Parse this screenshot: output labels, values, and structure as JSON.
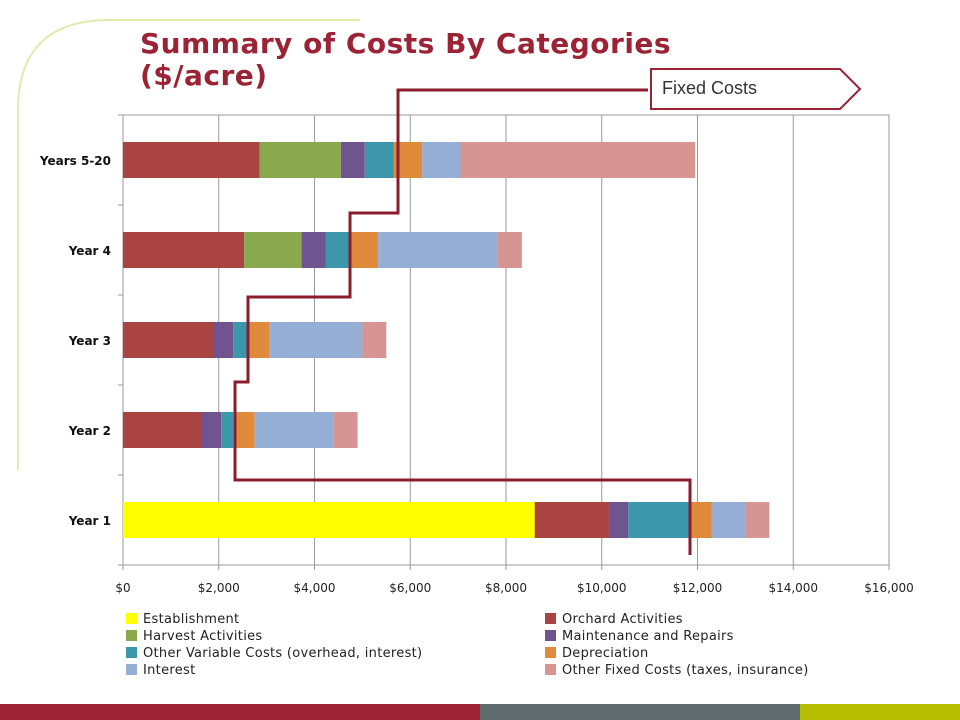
{
  "slide": {
    "title": "Summary of Costs By Categories ($/acre)",
    "callout_label": "Fixed Costs",
    "accent_color": "#9b2335",
    "decor_line_color": "#e3eab0",
    "footer_colors": [
      "#9b2335",
      "#5f6b6d",
      "#b5bd00"
    ]
  },
  "chart_data": {
    "type": "bar",
    "orientation": "horizontal",
    "stacked": true,
    "categories": [
      "Years 5-20",
      "Year 4",
      "Year 3",
      "Year 2",
      "Year 1"
    ],
    "x_ticks": [
      "$0",
      "$2,000",
      "$4,000",
      "$6,000",
      "$8,000",
      "$10,000",
      "$12,000",
      "$14,000",
      "$16,000"
    ],
    "xlim": [
      0,
      16000
    ],
    "grid": true,
    "legend_position": "bottom",
    "series": [
      {
        "name": "Establishment",
        "color": "#ffff00",
        "values": [
          0,
          0,
          0,
          0,
          8600
        ]
      },
      {
        "name": "Orchard Activities",
        "color": "#a94442",
        "values": [
          2850,
          2530,
          1900,
          1650,
          1550
        ]
      },
      {
        "name": "Harvest Activities",
        "color": "#8aa84e",
        "values": [
          1700,
          1200,
          0,
          0,
          0
        ]
      },
      {
        "name": "Maintenance and Repairs",
        "color": "#70548f",
        "values": [
          500,
          500,
          400,
          400,
          400
        ]
      },
      {
        "name": "Other Variable Costs (overhead, interest)",
        "color": "#3d97ab",
        "values": [
          600,
          500,
          300,
          250,
          1300
        ]
      },
      {
        "name": "Depreciation",
        "color": "#e08a3c",
        "values": [
          600,
          600,
          450,
          450,
          450
        ]
      },
      {
        "name": "Interest",
        "color": "#94aed6",
        "values": [
          800,
          2500,
          1950,
          1650,
          700
        ]
      },
      {
        "name": "Other Fixed Costs (taxes, insurance)",
        "color": "#d69492",
        "values": [
          4900,
          500,
          500,
          500,
          500
        ]
      }
    ]
  }
}
